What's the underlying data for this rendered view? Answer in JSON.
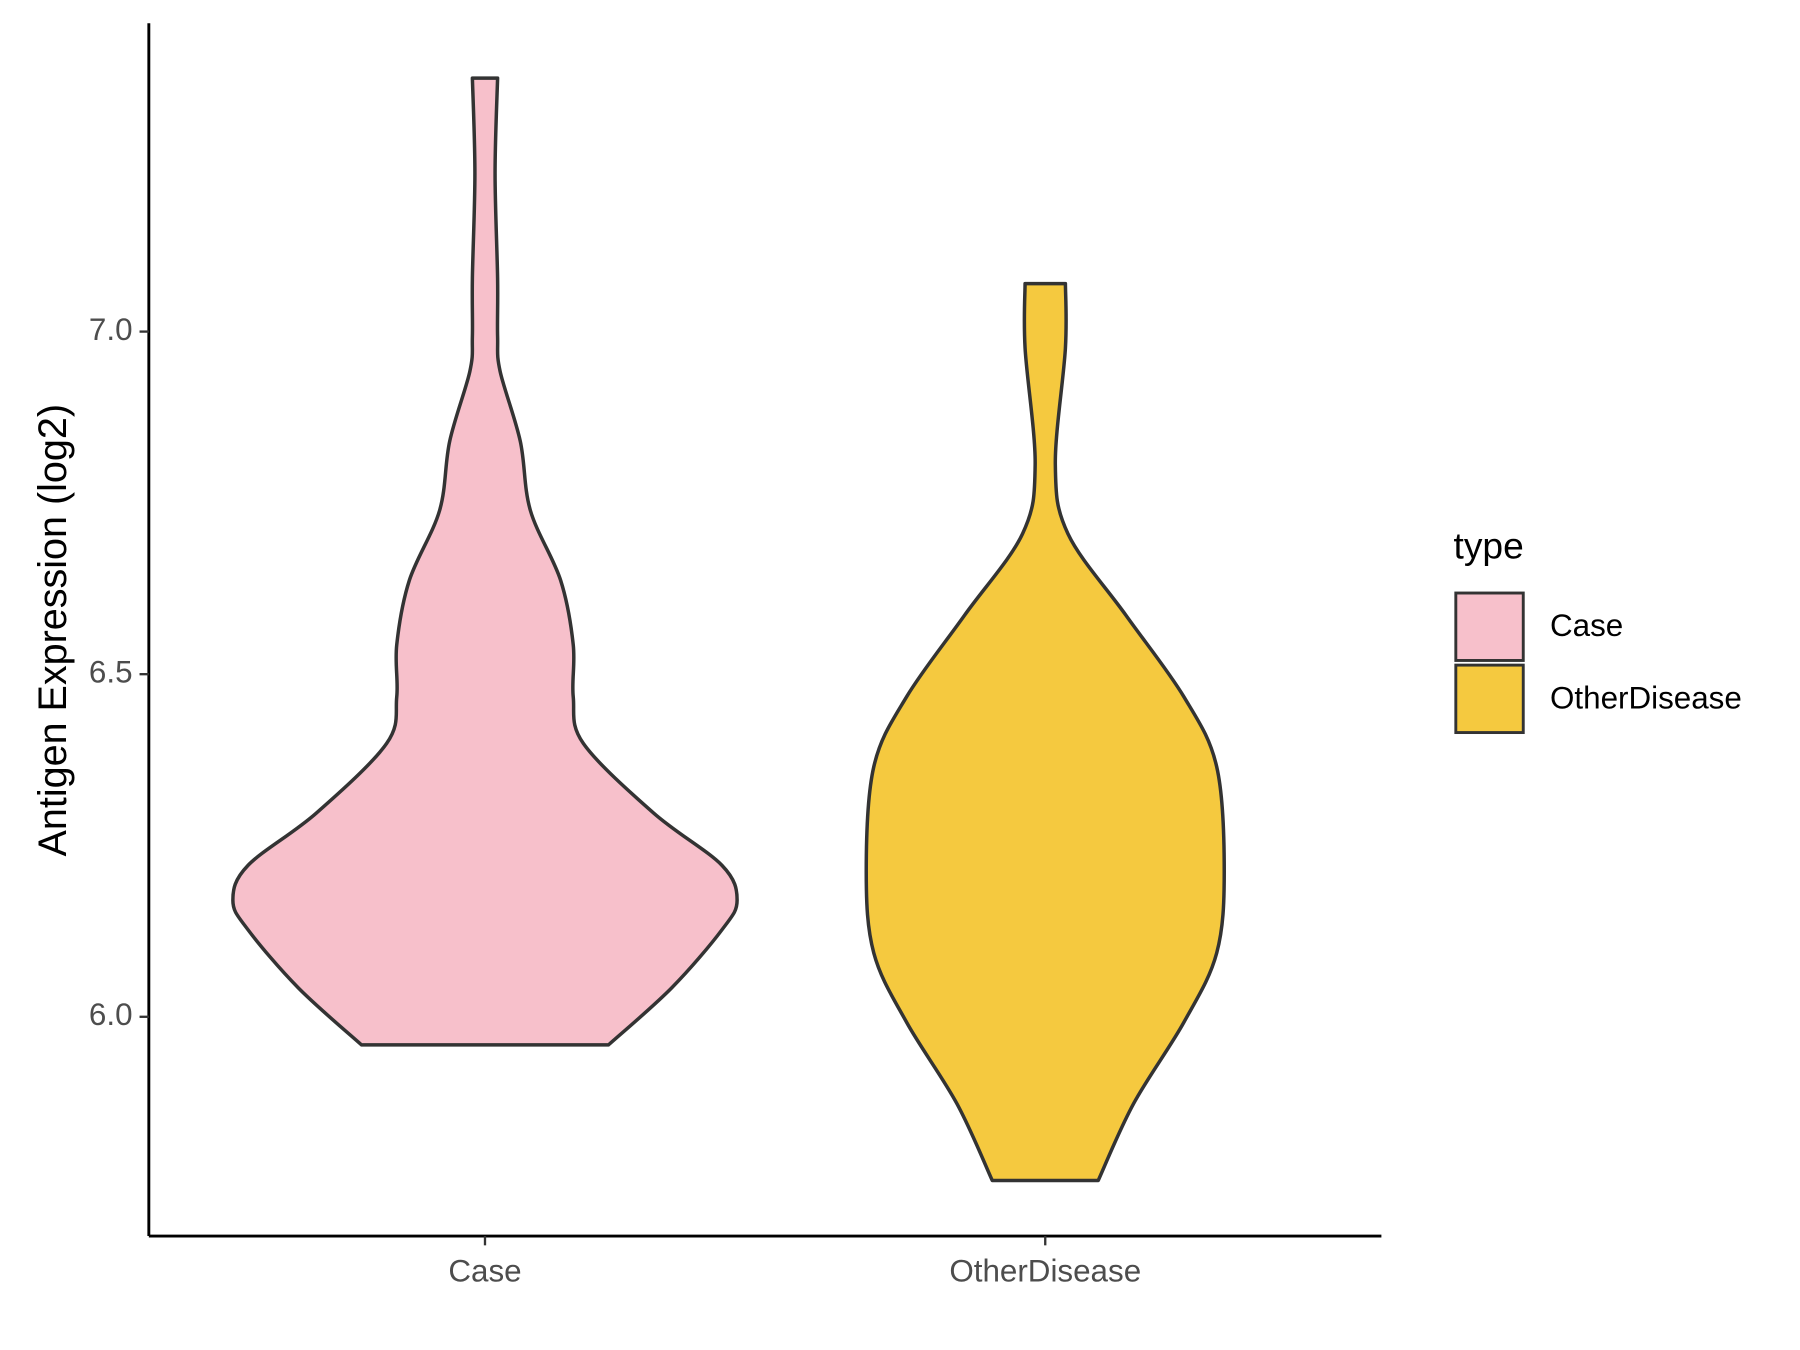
{
  "chart_data": {
    "type": "violin",
    "y_label": "Antigen Expression (log2)",
    "categories": [
      "Case",
      "OtherDisease"
    ],
    "ylim": [
      5.68,
      7.45
    ],
    "yticks": [
      {
        "value": 6,
        "label": "6.0"
      },
      {
        "value": 6.5,
        "label": "6.5"
      },
      {
        "value": 7,
        "label": "7.0"
      }
    ],
    "legend_title": "type",
    "legend_position": "right",
    "series": [
      {
        "name": "Case",
        "color": "#f7c0cb",
        "values": [
          7.37,
          7.231,
          7.078,
          6.993,
          6.942,
          6.84,
          6.739,
          6.637,
          6.543,
          6.467,
          6.399,
          6.297,
          6.221,
          6.17,
          6.127,
          6.042,
          5.959
        ],
        "density": [
          0.05,
          0.04,
          0.05,
          0.05,
          0.06,
          0.14,
          0.18,
          0.3,
          0.35,
          0.35,
          0.39,
          0.67,
          0.94,
          1,
          0.94,
          0.74,
          0.49
        ]
      },
      {
        "name": "OtherDisease",
        "color": "#f5c93f",
        "values": [
          7.07,
          6.976,
          6.806,
          6.705,
          6.586,
          6.467,
          6.365,
          6.212,
          6.093,
          5.992,
          5.873,
          5.761
        ],
        "density": [
          0.08,
          0.08,
          0.04,
          0.09,
          0.32,
          0.55,
          0.68,
          0.71,
          0.68,
          0.55,
          0.35,
          0.21
        ]
      }
    ]
  }
}
